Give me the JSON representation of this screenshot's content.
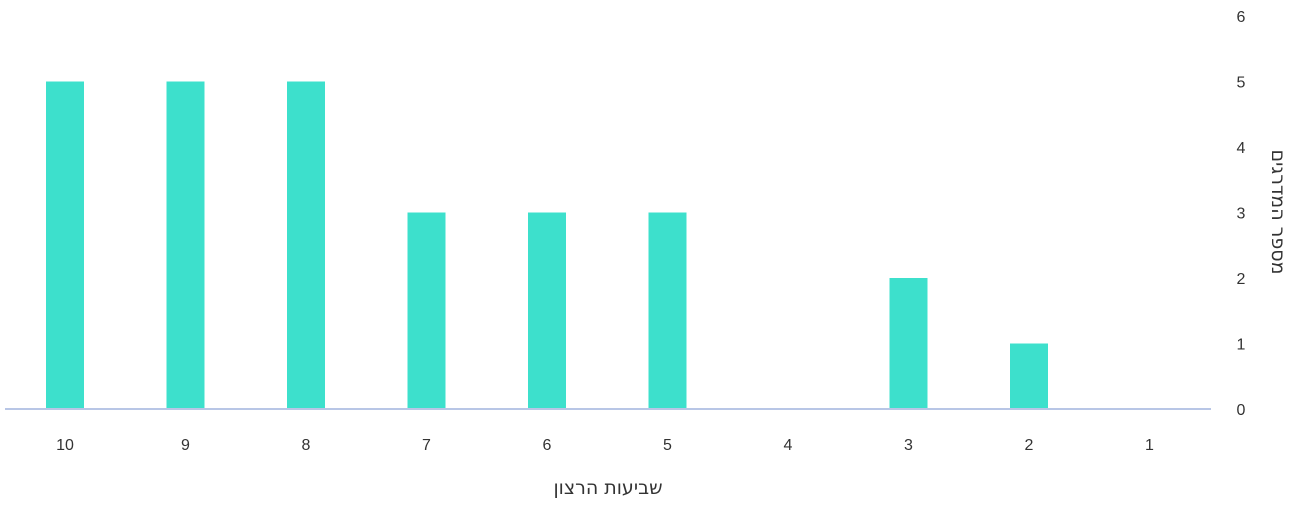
{
  "chart_data": {
    "type": "bar",
    "categories": [
      "10",
      "9",
      "8",
      "7",
      "6",
      "5",
      "4",
      "3",
      "2",
      "1"
    ],
    "values": [
      5,
      5,
      5,
      3,
      3,
      3,
      0,
      2,
      1,
      0
    ],
    "xlabel": "שביעות הרצון",
    "ylabel": "מספר המדרגים",
    "ylim": [
      0,
      6
    ],
    "y_ticks": [
      "0",
      "1",
      "2",
      "3",
      "4",
      "5",
      "6"
    ],
    "y_axis_side": "right",
    "grid": false,
    "bar_color": "#3de0cc",
    "axis_color": "#b8c6e6"
  }
}
